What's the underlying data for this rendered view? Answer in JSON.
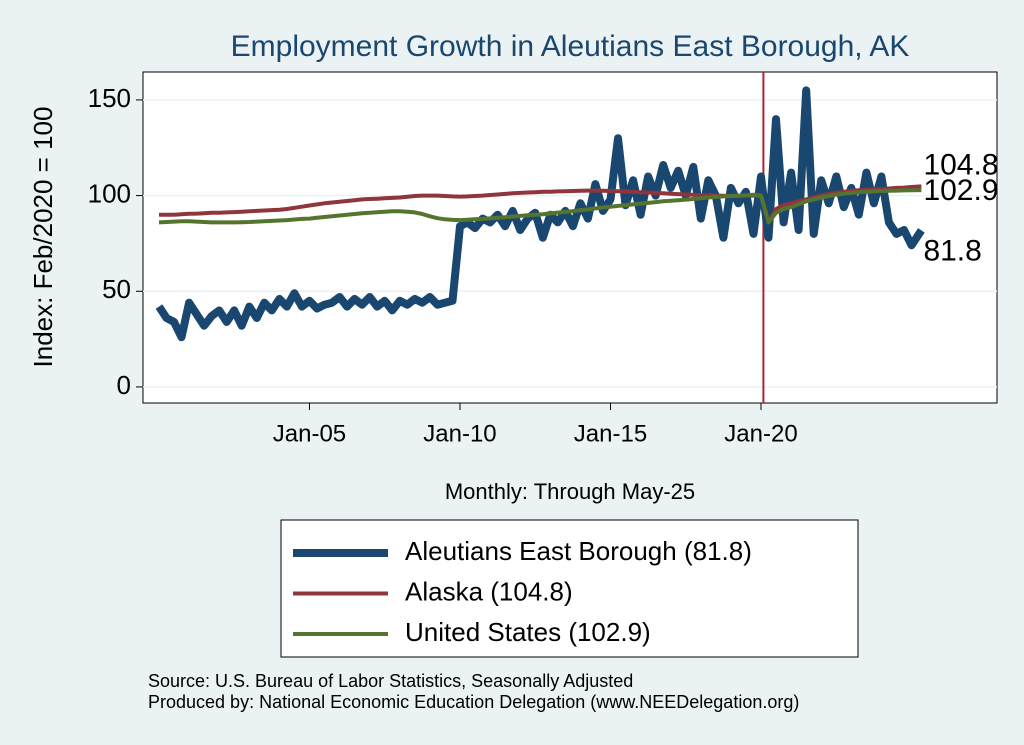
{
  "chart_data": {
    "type": "line",
    "title": "Employment Growth in Aleutians East Borough, AK",
    "ylabel": "Index: Feb/2020 = 100",
    "xlabel": "Monthly: Through May-25",
    "notes": [
      "Source: U.S. Bureau of Labor Statistics, Seasonally Adjusted",
      "Produced by: National Economic Education Delegation (www.NEEDelegation.org)"
    ],
    "x": [
      2000,
      2000.25,
      2000.5,
      2000.75,
      2001,
      2001.25,
      2001.5,
      2001.75,
      2002,
      2002.25,
      2002.5,
      2002.75,
      2003,
      2003.25,
      2003.5,
      2003.75,
      2004,
      2004.25,
      2004.5,
      2004.75,
      2005,
      2005.25,
      2005.5,
      2005.75,
      2006,
      2006.25,
      2006.5,
      2006.75,
      2007,
      2007.25,
      2007.5,
      2007.75,
      2008,
      2008.25,
      2008.5,
      2008.75,
      2009,
      2009.25,
      2009.5,
      2009.75,
      2010,
      2010.25,
      2010.5,
      2010.75,
      2011,
      2011.25,
      2011.5,
      2011.75,
      2012,
      2012.25,
      2012.5,
      2012.75,
      2013,
      2013.25,
      2013.5,
      2013.75,
      2014,
      2014.25,
      2014.5,
      2014.75,
      2015,
      2015.25,
      2015.5,
      2015.75,
      2016,
      2016.25,
      2016.5,
      2016.75,
      2017,
      2017.25,
      2017.5,
      2017.75,
      2018,
      2018.25,
      2018.5,
      2018.75,
      2019,
      2019.25,
      2019.5,
      2019.75,
      2020,
      2020.25,
      2020.5,
      2020.75,
      2021,
      2021.25,
      2021.5,
      2021.75,
      2022,
      2022.25,
      2022.5,
      2022.75,
      2023,
      2023.25,
      2023.5,
      2023.75,
      2024,
      2024.25,
      2024.5,
      2024.75,
      2025,
      2025.33
    ],
    "series": [
      {
        "name": "Aleutians East Borough  (81.8)",
        "color": "#1a476f",
        "width": 8,
        "values": [
          42,
          36,
          34,
          26,
          44,
          38,
          32,
          37,
          40,
          34,
          40,
          32,
          42,
          36,
          44,
          40,
          46,
          42,
          49,
          42,
          45,
          41,
          43,
          44,
          47,
          42,
          46,
          43,
          47,
          42,
          45,
          40,
          45,
          43,
          46,
          44,
          47,
          43,
          44,
          45,
          84,
          86,
          83,
          88,
          86,
          90,
          84,
          92,
          82,
          88,
          91,
          78,
          90,
          86,
          92,
          84,
          96,
          88,
          106,
          92,
          98,
          130,
          95,
          108,
          90,
          110,
          100,
          116,
          104,
          113,
          100,
          115,
          88,
          108,
          100,
          78,
          104,
          96,
          102,
          80,
          110,
          78,
          140,
          86,
          112,
          82,
          155,
          80,
          108,
          96,
          110,
          94,
          104,
          90,
          112,
          96,
          110,
          86,
          80,
          82,
          74,
          81.8
        ]
      },
      {
        "name": "Alaska (104.8)",
        "color": "#90353b",
        "width": 4,
        "values": [
          90,
          90,
          90,
          90.2,
          90.5,
          90.6,
          90.8,
          91,
          91,
          91.2,
          91.4,
          91.6,
          91.8,
          92,
          92.2,
          92.4,
          92.6,
          93,
          93.6,
          94.2,
          94.8,
          95.4,
          96,
          96.4,
          96.8,
          97.2,
          97.6,
          98,
          98.2,
          98.4,
          98.6,
          98.8,
          99,
          99.4,
          99.8,
          100,
          100,
          100,
          99.8,
          99.6,
          99.5,
          99.6,
          99.8,
          100,
          100.3,
          100.6,
          100.9,
          101.2,
          101.4,
          101.6,
          101.8,
          102,
          102,
          102.2,
          102.3,
          102.4,
          102.5,
          102.6,
          102.6,
          102.5,
          102.4,
          102.3,
          102.2,
          102,
          101.8,
          101.6,
          101.4,
          101.2,
          101,
          100.8,
          100.6,
          100.4,
          100.2,
          100.1,
          100,
          99.9,
          99.8,
          99.8,
          99.9,
          100,
          100,
          86,
          93,
          95,
          96,
          97,
          98,
          99,
          100,
          100.8,
          101.5,
          102,
          102.5,
          102.8,
          103,
          103.2,
          103.4,
          103.7,
          104,
          104.2,
          104.5,
          104.8
        ]
      },
      {
        "name": "United States (102.9)",
        "color": "#55752f",
        "width": 4,
        "values": [
          86,
          86.2,
          86.4,
          86.6,
          86.6,
          86.4,
          86.2,
          86,
          86,
          86,
          86,
          86.1,
          86.2,
          86.4,
          86.6,
          86.8,
          87,
          87.2,
          87.5,
          87.8,
          88,
          88.4,
          88.8,
          89.2,
          89.6,
          90,
          90.4,
          90.8,
          91,
          91.3,
          91.6,
          91.8,
          91.8,
          91.6,
          91.2,
          90.4,
          89.2,
          88.2,
          87.6,
          87.3,
          87.2,
          87.4,
          87.6,
          87.8,
          88.1,
          88.4,
          88.7,
          89,
          89.4,
          89.7,
          90,
          90.3,
          90.7,
          91.1,
          91.5,
          91.9,
          92.4,
          92.8,
          93.3,
          93.8,
          94.2,
          94.6,
          95,
          95.4,
          95.8,
          96.2,
          96.6,
          97,
          97.3,
          97.6,
          97.9,
          98.2,
          98.6,
          99,
          99.3,
          99.6,
          99.8,
          100,
          100.2,
          100.4,
          100,
          86,
          91,
          93,
          94,
          95.5,
          97,
          98,
          99,
          99.8,
          100.5,
          101,
          101.4,
          101.8,
          102,
          102.2,
          102.4,
          102.5,
          102.6,
          102.7,
          102.8,
          102.9
        ]
      }
    ],
    "xlim": [
      1999.47,
      2027.84
    ],
    "ylim": [
      -8.4,
      164.6
    ],
    "xticks": [
      {
        "value": 2005,
        "label": "Jan-05"
      },
      {
        "value": 2010,
        "label": "Jan-10"
      },
      {
        "value": 2015,
        "label": "Jan-15"
      },
      {
        "value": 2020,
        "label": "Jan-20"
      }
    ],
    "yticks": [
      0,
      50,
      100,
      150
    ],
    "grid": true,
    "vline": {
      "value": 2020.08,
      "color": "#b22234"
    }
  }
}
